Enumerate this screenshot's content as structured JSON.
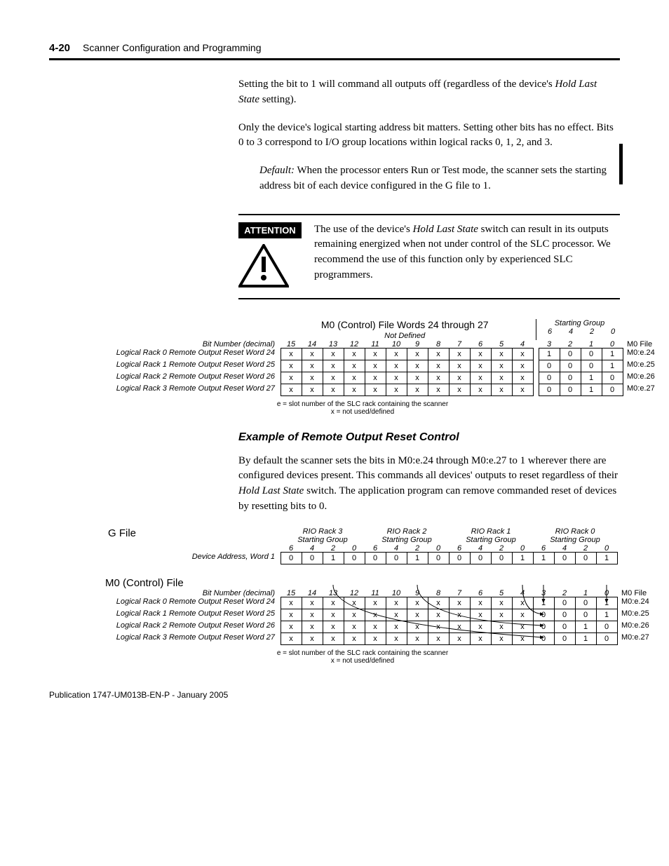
{
  "header": {
    "page_number": "4-20",
    "section_title": "Scanner Configuration and Programming"
  },
  "paragraphs": {
    "p1_a": "Setting the bit to 1 will command all outputs off (regardless of the device's ",
    "p1_b": "Hold Last State",
    "p1_c": " setting).",
    "p2": "Only the device's logical starting address bit matters. Setting other bits has no effect. Bits 0 to 3 correspond to I/O group locations within logical racks 0, 1, 2, and 3.",
    "default_lead": "Default:",
    "default_rest": " When the processor enters Run or Test mode, the scanner sets the starting address bit of each device configured in the G file to 1."
  },
  "attention": {
    "label": "ATTENTION",
    "text_a": "The use of the device's ",
    "text_b": "Hold Last State",
    "text_c": " switch can result in its outputs remaining energized when not under control of the SLC processor. We recommend the use of this function only by experienced SLC programmers."
  },
  "table1": {
    "title": "M0 (Control) File Words 24 through 27",
    "not_defined": "Not   Defined",
    "bit_label": "Bit Number (decimal)",
    "sg_label": "Starting Group",
    "sg_nums": [
      "6",
      "4",
      "2",
      "0"
    ],
    "bits": [
      "15",
      "14",
      "13",
      "12",
      "11",
      "10",
      "9",
      "8",
      "7",
      "6",
      "5",
      "4",
      "3",
      "2",
      "1",
      "0"
    ],
    "m0file_hdr": "M0 File",
    "rows": [
      {
        "label": "Logical  Rack 0 Remote Output Reset Word 24",
        "cells": [
          "x",
          "x",
          "x",
          "x",
          "x",
          "x",
          "x",
          "x",
          "x",
          "x",
          "x",
          "x",
          "1",
          "0",
          "0",
          "1"
        ],
        "file": "M0:e.24"
      },
      {
        "label": "Logical Rack 1 Remote Output Reset Word 25",
        "cells": [
          "x",
          "x",
          "x",
          "x",
          "x",
          "x",
          "x",
          "x",
          "x",
          "x",
          "x",
          "x",
          "0",
          "0",
          "0",
          "1"
        ],
        "file": "M0:e.25"
      },
      {
        "label": "Logical Rack 2 Remote Output Reset Word 26",
        "cells": [
          "x",
          "x",
          "x",
          "x",
          "x",
          "x",
          "x",
          "x",
          "x",
          "x",
          "x",
          "x",
          "0",
          "0",
          "1",
          "0"
        ],
        "file": "M0:e.26"
      },
      {
        "label": "Logical Rack 3 Remote Output Reset Word 27",
        "cells": [
          "x",
          "x",
          "x",
          "x",
          "x",
          "x",
          "x",
          "x",
          "x",
          "x",
          "x",
          "x",
          "0",
          "0",
          "1",
          "0"
        ],
        "file": "M0:e.27"
      }
    ],
    "legend1": "e = slot number of the SLC rack containing the scanner",
    "legend2": "x = not used/defined"
  },
  "example_heading": "Example of Remote Output Reset Control",
  "example_p_a": "By default the scanner sets the bits in M0:e.24 through M0:e.27 to 1 wherever there are configured devices present. This commands all devices' outputs to reset regardless of their ",
  "example_p_b": "Hold Last State",
  "example_p_c": " switch. The application program can remove commanded reset of devices by resetting bits to 0.",
  "table2": {
    "gfile": "G File",
    "m0file": "M0 (Control) File",
    "rio_groups": [
      {
        "name": "RIO Rack 3",
        "sub": "Starting Group"
      },
      {
        "name": "RIO Rack 2",
        "sub": "Starting Group"
      },
      {
        "name": "RIO Rack 1",
        "sub": "Starting Group"
      },
      {
        "name": "RIO Rack 0",
        "sub": "Starting Group"
      }
    ],
    "group_nums": [
      "6",
      "4",
      "2",
      "0",
      "6",
      "4",
      "2",
      "0",
      "6",
      "4",
      "2",
      "0",
      "6",
      "4",
      "2",
      "0"
    ],
    "dev_label": "Device Address, Word 1",
    "dev_cells": [
      "0",
      "0",
      "1",
      "0",
      "0",
      "0",
      "1",
      "0",
      "0",
      "0",
      "0",
      "1",
      "1",
      "0",
      "0",
      "1"
    ],
    "bit_label": "Bit Number (decimal)",
    "bits": [
      "15",
      "14",
      "13",
      "12",
      "11",
      "10",
      "9",
      "8",
      "7",
      "6",
      "5",
      "4",
      "3",
      "2",
      "1",
      "0"
    ],
    "m0file_hdr": "M0 File",
    "rows": [
      {
        "label": "Logical Rack 0 Remote Output Reset Word 24",
        "cells": [
          "x",
          "x",
          "x",
          "x",
          "x",
          "x",
          "x",
          "x",
          "x",
          "x",
          "x",
          "x",
          "1",
          "0",
          "0",
          "1"
        ],
        "file": "M0:e.24"
      },
      {
        "label": "Logical Rack 1 Remote Output Reset Word 25",
        "cells": [
          "x",
          "x",
          "x",
          "x",
          "x",
          "x",
          "x",
          "x",
          "x",
          "x",
          "x",
          "x",
          "0",
          "0",
          "0",
          "1"
        ],
        "file": "M0:e.25"
      },
      {
        "label": "Logical Rack 2 Remote Output Reset Word 26",
        "cells": [
          "x",
          "x",
          "x",
          "x",
          "x",
          "x",
          "x",
          "x",
          "x",
          "x",
          "x",
          "x",
          "0",
          "0",
          "1",
          "0"
        ],
        "file": "M0:e.26"
      },
      {
        "label": "Logical Rack 3 Remote Output Reset Word 27",
        "cells": [
          "x",
          "x",
          "x",
          "x",
          "x",
          "x",
          "x",
          "x",
          "x",
          "x",
          "x",
          "x",
          "0",
          "0",
          "1",
          "0"
        ],
        "file": "M0:e.27"
      }
    ],
    "legend1": "e = slot number of the SLC rack containing the scanner",
    "legend2": "x = not used/defined"
  },
  "footer": "Publication 1747-UM013B-EN-P - January 2005",
  "colors": {
    "text": "#000000",
    "bg": "#ffffff",
    "rule": "#000000"
  }
}
